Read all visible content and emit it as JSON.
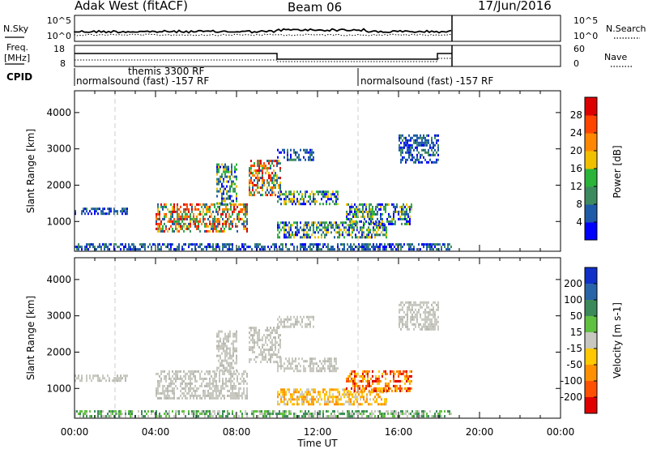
{
  "header": {
    "site": "Adak West (fitACF)",
    "beam": "Beam 06",
    "date": "17/Jun/2016"
  },
  "status_panels": {
    "nsky_label": "N.Sky",
    "nsearch_label": "N.Search",
    "freq_label_line1": "Freq.",
    "freq_label_line2": "[MHz]",
    "nave_label": "Nave",
    "cpid_label": "CPID",
    "noise_left_ticks": [
      "10^5",
      "10^0"
    ],
    "noise_right_ticks": [
      "10^5",
      "10^0"
    ],
    "freq_left_ticks": [
      "18",
      "8"
    ],
    "freq_right_ticks": [
      "60",
      "0"
    ],
    "cpid_segments": [
      {
        "name": "normalsound (fast) -157 RF",
        "start_hour": 0.0
      },
      {
        "name": "themis 3300 RF",
        "start_hour": 2.0
      },
      {
        "name": "normalsound (fast) -157 RF",
        "start_hour": 14.0
      }
    ]
  },
  "time_axis": {
    "label": "Time UT",
    "ticks": [
      "00:00",
      "04:00",
      "08:00",
      "12:00",
      "16:00",
      "20:00",
      "00:00"
    ]
  },
  "chart_data": [
    {
      "type": "heatmap",
      "name": "power-panel",
      "ylabel": "Slant Range [km]",
      "xlabel": "",
      "xlim_hours": [
        0,
        24
      ],
      "ylim_km": [
        180,
        4600
      ],
      "yticks": [
        "1000",
        "2000",
        "3000",
        "4000"
      ],
      "colorbar": {
        "label": "Power [dB]",
        "ticks": [
          "4",
          "8",
          "12",
          "16",
          "20",
          "24",
          "28"
        ],
        "colors": [
          "#0000ff",
          "#1e5aa8",
          "#3d8a5e",
          "#2ab43a",
          "#f0c000",
          "#ff8800",
          "#ff4400",
          "#dd0000"
        ]
      },
      "echo_regions": [
        {
          "t0": 0.0,
          "t1": 2.6,
          "r0": 1220,
          "r1": 1380,
          "level": "low"
        },
        {
          "t0": 4.0,
          "t1": 8.5,
          "r0": 700,
          "r1": 1500,
          "level": "high"
        },
        {
          "t0": 7.0,
          "t1": 8.0,
          "r0": 1500,
          "r1": 2600,
          "level": "mid"
        },
        {
          "t0": 8.6,
          "t1": 10.2,
          "r0": 1700,
          "r1": 2700,
          "level": "high"
        },
        {
          "t0": 10.0,
          "t1": 13.0,
          "r0": 1450,
          "r1": 1850,
          "level": "mid"
        },
        {
          "t0": 10.0,
          "t1": 11.8,
          "r0": 2700,
          "r1": 3000,
          "level": "low"
        },
        {
          "t0": 10.0,
          "t1": 15.4,
          "r0": 550,
          "r1": 1000,
          "level": "mid"
        },
        {
          "t0": 13.4,
          "t1": 16.6,
          "r0": 900,
          "r1": 1500,
          "level": "mid"
        },
        {
          "t0": 16.0,
          "t1": 18.0,
          "r0": 2600,
          "r1": 3400,
          "level": "low"
        },
        {
          "t0": 0.0,
          "t1": 18.6,
          "r0": 200,
          "r1": 400,
          "level": "low"
        }
      ]
    },
    {
      "type": "heatmap",
      "name": "velocity-panel",
      "ylabel": "Slant Range [km]",
      "xlabel": "Time UT",
      "xlim_hours": [
        0,
        24
      ],
      "ylim_km": [
        180,
        4600
      ],
      "yticks": [
        "1000",
        "2000",
        "3000",
        "4000"
      ],
      "colorbar": {
        "label": "Velocity [m s-1]",
        "ticks": [
          "200",
          "100",
          "50",
          "15",
          "-15",
          "-50",
          "-100",
          "-200"
        ],
        "colors": [
          "#1030c8",
          "#2a64a8",
          "#3c8a5a",
          "#60c040",
          "#c8c8c0",
          "#ffc800",
          "#ff9000",
          "#ff5000",
          "#e00000"
        ]
      },
      "echo_regions": [
        {
          "t0": 0.0,
          "t1": 2.6,
          "r0": 1220,
          "r1": 1380,
          "level": "ground"
        },
        {
          "t0": 4.0,
          "t1": 8.5,
          "r0": 700,
          "r1": 1500,
          "level": "ground"
        },
        {
          "t0": 7.0,
          "t1": 8.0,
          "r0": 1500,
          "r1": 2600,
          "level": "ground"
        },
        {
          "t0": 8.6,
          "t1": 10.2,
          "r0": 1700,
          "r1": 2700,
          "level": "ground"
        },
        {
          "t0": 10.0,
          "t1": 13.0,
          "r0": 1450,
          "r1": 1850,
          "level": "ground"
        },
        {
          "t0": 10.0,
          "t1": 11.8,
          "r0": 2700,
          "r1": 3000,
          "level": "ground"
        },
        {
          "t0": 10.0,
          "t1": 15.4,
          "r0": 550,
          "r1": 1000,
          "level": "away"
        },
        {
          "t0": 13.4,
          "t1": 16.6,
          "r0": 900,
          "r1": 1500,
          "level": "away-strong"
        },
        {
          "t0": 16.0,
          "t1": 18.0,
          "r0": 2600,
          "r1": 3400,
          "level": "ground"
        },
        {
          "t0": 0.0,
          "t1": 18.6,
          "r0": 200,
          "r1": 400,
          "level": "toward"
        }
      ]
    }
  ]
}
